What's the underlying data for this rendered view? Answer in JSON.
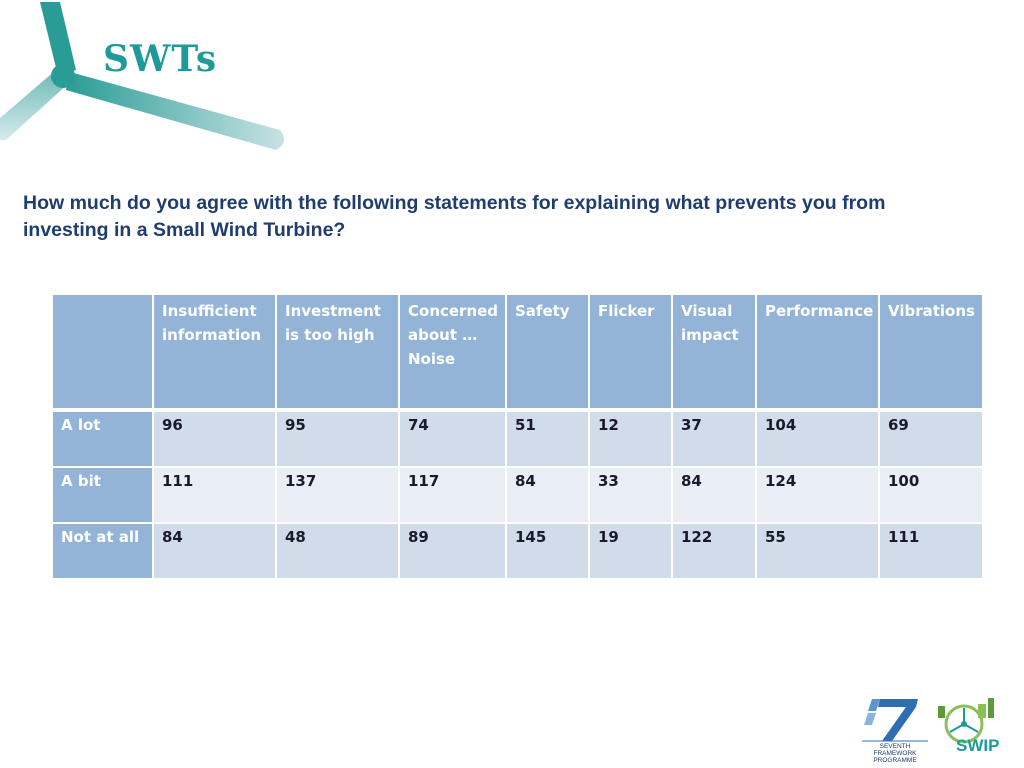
{
  "header": {
    "title": "SWTs",
    "brand_color": "#1f9a9a"
  },
  "question": "How much do you agree with the following statements for explaining what prevents you from investing in a Small Wind Turbine?",
  "table": {
    "corner": "",
    "columns": [
      "Insufficient information",
      "Investment is too high",
      "Concerned about … Noise",
      "Safety",
      "Flicker",
      "Visual impact",
      "Performance",
      "Vibrations"
    ],
    "rows": [
      {
        "label": "A lot",
        "values": [
          "96",
          "95",
          "74",
          "51",
          "12",
          "37",
          "104",
          "69"
        ]
      },
      {
        "label": "A bit",
        "values": [
          "111",
          "137",
          "117",
          "84",
          "33",
          "84",
          "124",
          "100"
        ]
      },
      {
        "label": "Not at all",
        "values": [
          "84",
          "48",
          "89",
          "145",
          "19",
          "122",
          "55",
          "111"
        ]
      }
    ],
    "header_color": "#93b4d6"
  },
  "logos": {
    "fp7": {
      "icon": "fp7-logo",
      "text": "SEVENTH FRAMEWORK PROGRAMME"
    },
    "swip": {
      "icon": "swip-logo",
      "text": "SWIP"
    }
  }
}
